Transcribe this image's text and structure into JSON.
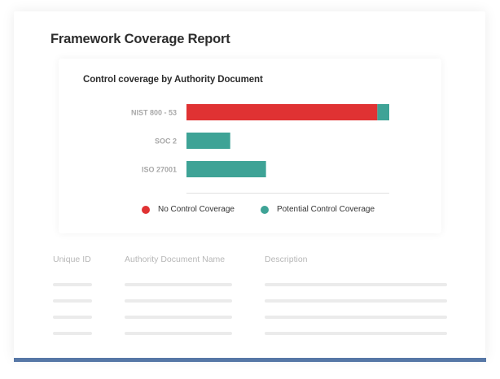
{
  "report": {
    "title": "Framework Coverage Report"
  },
  "chart_data": {
    "type": "bar",
    "orientation": "horizontal",
    "stacked": true,
    "title": "Control coverage by Authority Document",
    "categories": [
      "NIST 800 - 53",
      "SOC 2",
      "ISO 27001"
    ],
    "series": [
      {
        "name": "No Control Coverage",
        "color": "#e03233",
        "values": [
          48,
          0,
          0
        ]
      },
      {
        "name": "Potential Control Coverage",
        "color": "#3ea396",
        "values": [
          3,
          11,
          20
        ]
      }
    ],
    "xlim": [
      0,
      51
    ],
    "grid": false,
    "legend_position": "bottom"
  },
  "legend": {
    "items": [
      {
        "label": "No Control Coverage",
        "color": "#e03233"
      },
      {
        "label": "Potential Control Coverage",
        "color": "#3ea396"
      }
    ]
  },
  "table": {
    "columns": [
      "Unique ID",
      "Authority Document Name",
      "Description"
    ],
    "row_count": 4
  },
  "colors": {
    "accent_bar": "#5677a6",
    "placeholder": "#ebebeb"
  }
}
